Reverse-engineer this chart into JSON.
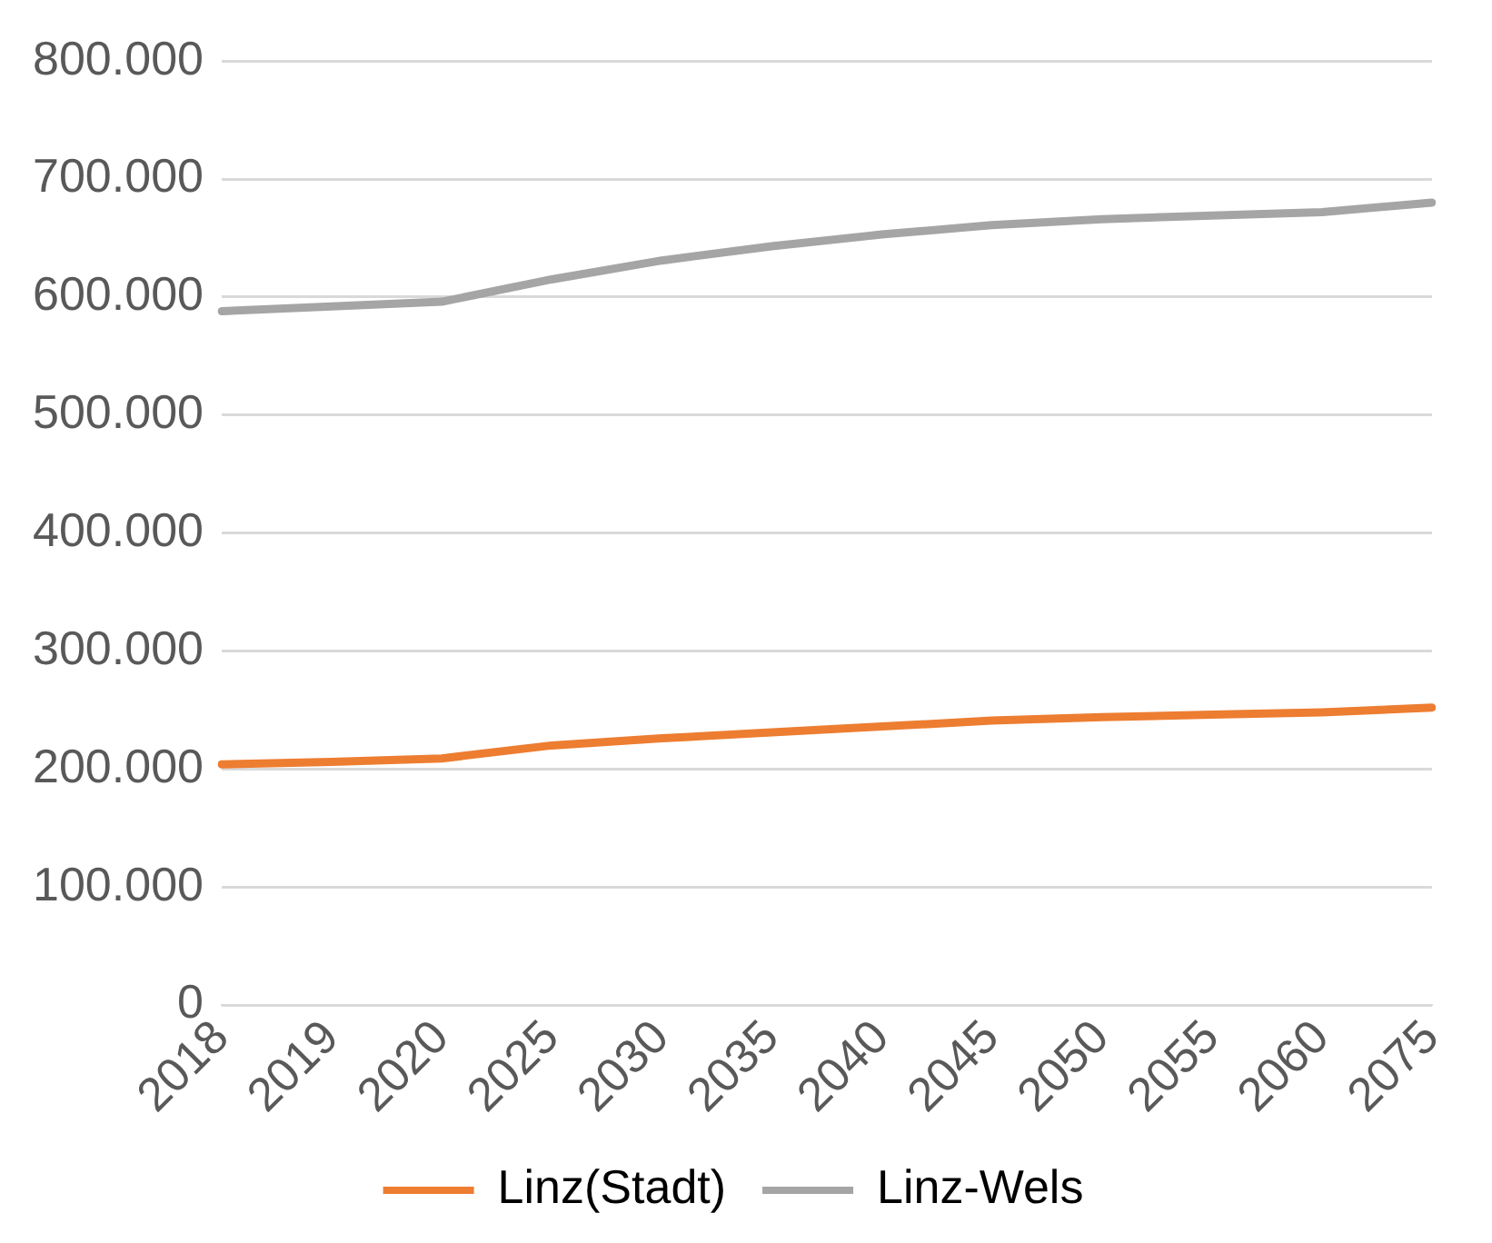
{
  "chart_data": {
    "type": "line",
    "categories": [
      "2018",
      "2019",
      "2020",
      "2025",
      "2030",
      "2035",
      "2040",
      "2045",
      "2050",
      "2055",
      "2060",
      "2075"
    ],
    "series": [
      {
        "name": "Linz(Stadt)",
        "color": "#ed7d31",
        "values": [
          204000,
          206000,
          209000,
          220000,
          226000,
          231000,
          236000,
          241000,
          244000,
          246000,
          248000,
          252000
        ]
      },
      {
        "name": "Linz-Wels",
        "color": "#a5a5a5",
        "values": [
          588000,
          592000,
          596000,
          615000,
          631000,
          643000,
          653000,
          661000,
          666000,
          669000,
          672000,
          680000
        ]
      }
    ],
    "ylim": [
      0,
      800000
    ],
    "yticks": [
      0,
      {
        "value": 100000,
        "label": "100.000"
      },
      {
        "value": 200000,
        "label": "200.000"
      },
      {
        "value": 300000,
        "label": "300.000"
      },
      {
        "value": 400000,
        "label": "400.000"
      },
      {
        "value": 500000,
        "label": "500.000"
      },
      {
        "value": 600000,
        "label": "600.000"
      },
      {
        "value": 700000,
        "label": "700.000"
      },
      {
        "value": 800000,
        "label": "800.000"
      }
    ],
    "grid": "y",
    "legend": "bottom",
    "marker": "none",
    "line_style": "solid"
  }
}
